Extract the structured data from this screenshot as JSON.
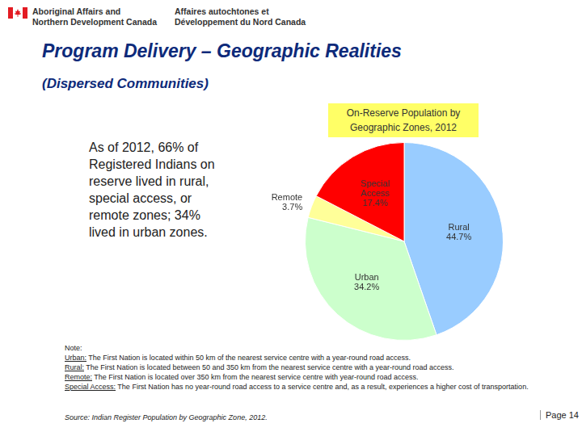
{
  "header": {
    "department_en": [
      "Aboriginal Affairs and",
      "Northern Development Canada"
    ],
    "department_fr": [
      "Affaires autochtones et",
      "Développement du Nord Canada"
    ]
  },
  "title": "Program Delivery – Geographic Realities",
  "subtitle": "(Dispersed Communities)",
  "body_text": "As of 2012, 66% of Registered Indians on reserve lived in rural, special access, or remote zones; 34% lived in urban zones.",
  "chart_data": {
    "type": "pie",
    "title": "On-Reserve Population by Geographic Zones, 2012",
    "categories": [
      "Rural",
      "Urban",
      "Remote",
      "Special Access"
    ],
    "values": [
      44.7,
      34.2,
      3.7,
      17.4
    ],
    "value_labels": [
      "44.7%",
      "34.2%",
      "3.7%",
      "17.4%"
    ],
    "colors": [
      "#99ccff",
      "#ccffcc",
      "#ffff99",
      "#ff0000"
    ],
    "data_labels": true
  },
  "notes": {
    "heading": "Note:",
    "items": [
      {
        "term": "Urban:",
        "text": "The First Nation is located within 50 km of the nearest service centre with a year-round road access."
      },
      {
        "term": "Rural:",
        "text": "The First Nation is located between 50 and 350 km from the nearest service centre with a year-round road access."
      },
      {
        "term": "Remote:",
        "text": "The First Nation is located over 350 km from the nearest service centre with year-round road access."
      },
      {
        "term": "Special Access:",
        "text": "The First Nation has no year-round road access to a service centre and, as a result, experiences a higher cost of transportation."
      }
    ]
  },
  "source": "Source: Indian Register Population by Geographic Zone, 2012.",
  "page": "Page 14"
}
